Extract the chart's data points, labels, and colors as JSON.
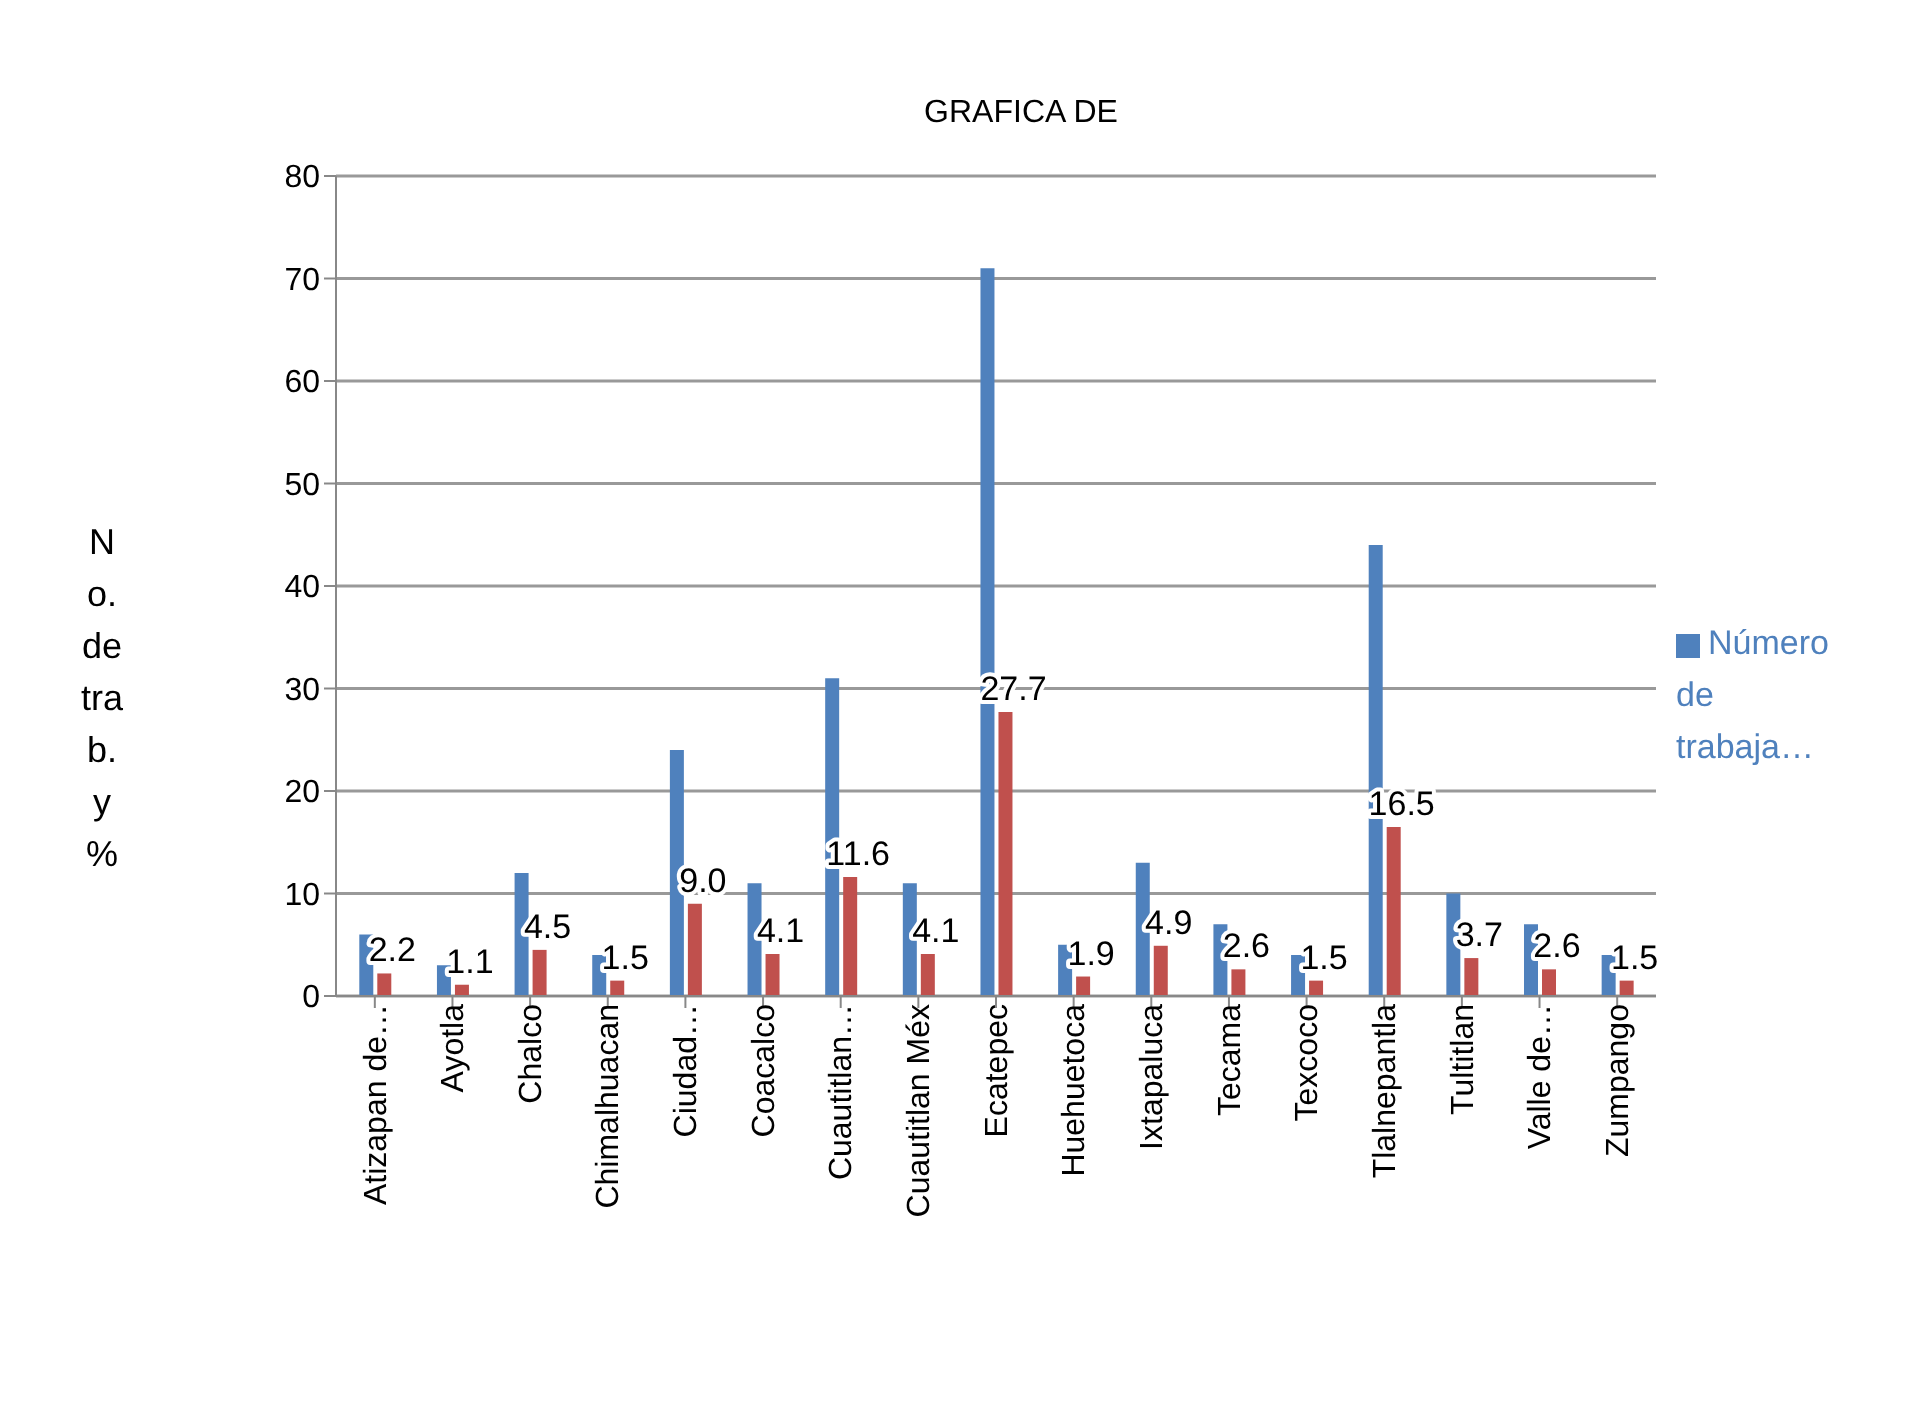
{
  "chart_data": {
    "type": "bar",
    "title": "GRAFICA DE",
    "ylabel": "No. de trab. y %",
    "categories": [
      "Atizapan de…",
      "Ayotla",
      "Chalco",
      "Chimalhuacan",
      "Ciudad…",
      "Coacalco",
      "Cuautitlan…",
      "Cuautitlan Méx",
      "Ecatepec",
      "Huehuetoca",
      "Ixtapaluca",
      "Tecama",
      "Texcoco",
      "Tlalnepantla",
      "Tultitlan",
      "Valle de…",
      "Zumpango"
    ],
    "series": [
      {
        "name": "Número de trabaja…",
        "color": "#4f81bd",
        "values": [
          6,
          3,
          12,
          4,
          24,
          11,
          31,
          11,
          71,
          5,
          13,
          7,
          4,
          44,
          10,
          7,
          4
        ]
      },
      {
        "color": "#c0504d",
        "values": [
          2.2,
          1.1,
          4.5,
          1.5,
          9.0,
          4.1,
          11.6,
          4.1,
          27.7,
          1.9,
          4.9,
          2.6,
          1.5,
          16.5,
          3.7,
          2.6,
          1.5
        ],
        "value_labels": [
          "2.2",
          "1.1",
          "4.5",
          "1.5",
          "9.0",
          "4.1",
          "11.6",
          "4.1",
          "27.7",
          "1.9",
          "4.9",
          "2.6",
          "1.5",
          "16.5",
          "3.7",
          "2.6",
          "1.5"
        ]
      }
    ],
    "ylim": [
      0,
      80
    ],
    "yticks": [
      0,
      10,
      20,
      30,
      40,
      50,
      60,
      70,
      80
    ],
    "grid": "y",
    "legend": "right"
  }
}
